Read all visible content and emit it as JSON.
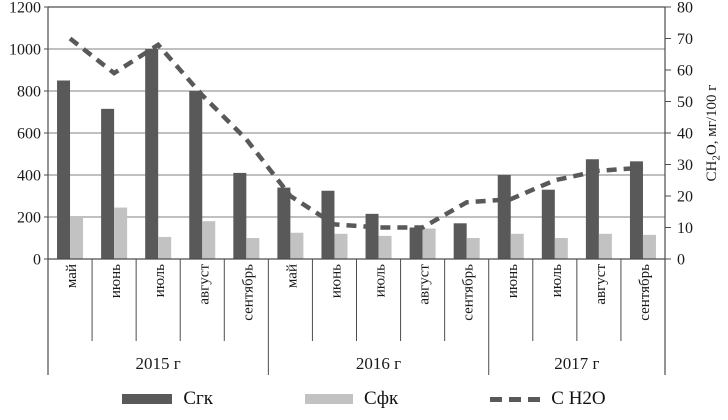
{
  "chart_data": {
    "type": "combo-bar-line",
    "title": "",
    "years": [
      {
        "label": "2015 г",
        "months": [
          "май",
          "июнь",
          "июль",
          "август",
          "сентябрь"
        ]
      },
      {
        "label": "2016 г",
        "months": [
          "май",
          "июнь",
          "июль",
          "август",
          "сентябрь"
        ]
      },
      {
        "label": "2017 г",
        "months": [
          "июнь",
          "июль",
          "август",
          "сентябрь"
        ]
      }
    ],
    "series": [
      {
        "name": "Сгк",
        "type": "bar",
        "axis": "left",
        "color": "#595959",
        "values": [
          850,
          715,
          1000,
          800,
          410,
          340,
          325,
          215,
          150,
          170,
          400,
          330,
          475,
          465
        ]
      },
      {
        "name": "Сфк",
        "type": "bar",
        "axis": "left",
        "color": "#c2c2c2",
        "values": [
          200,
          245,
          105,
          180,
          100,
          125,
          120,
          110,
          145,
          100,
          120,
          100,
          120,
          115
        ]
      },
      {
        "name": "С Н2О",
        "type": "dashed-line",
        "axis": "right",
        "color": "#595959",
        "values": [
          70,
          59,
          68,
          52,
          38,
          20,
          11,
          10,
          10,
          18,
          19,
          25,
          28,
          29
        ]
      }
    ],
    "left_axis": {
      "min": 0,
      "max": 1200,
      "step": 200,
      "tick_labels": [
        "0",
        "200",
        "400",
        "600",
        "800",
        "1000",
        "1200"
      ]
    },
    "right_axis": {
      "min": 0,
      "max": 80,
      "step": 10,
      "tick_labels": [
        "0",
        "10",
        "20",
        "30",
        "40",
        "50",
        "60",
        "70",
        "80"
      ],
      "title": "СН2О, мг/100 г",
      "title_parts": {
        "pre": "СН",
        "sub": "2",
        "post": "О, мг/100 г"
      }
    },
    "grid": "horizontal",
    "legend_position": "bottom",
    "colors": {
      "bar_dark": "#595959",
      "bar_light": "#c2c2c2",
      "line": "#595959",
      "gridline": "#808080",
      "axis": "#4d4d4d"
    }
  }
}
